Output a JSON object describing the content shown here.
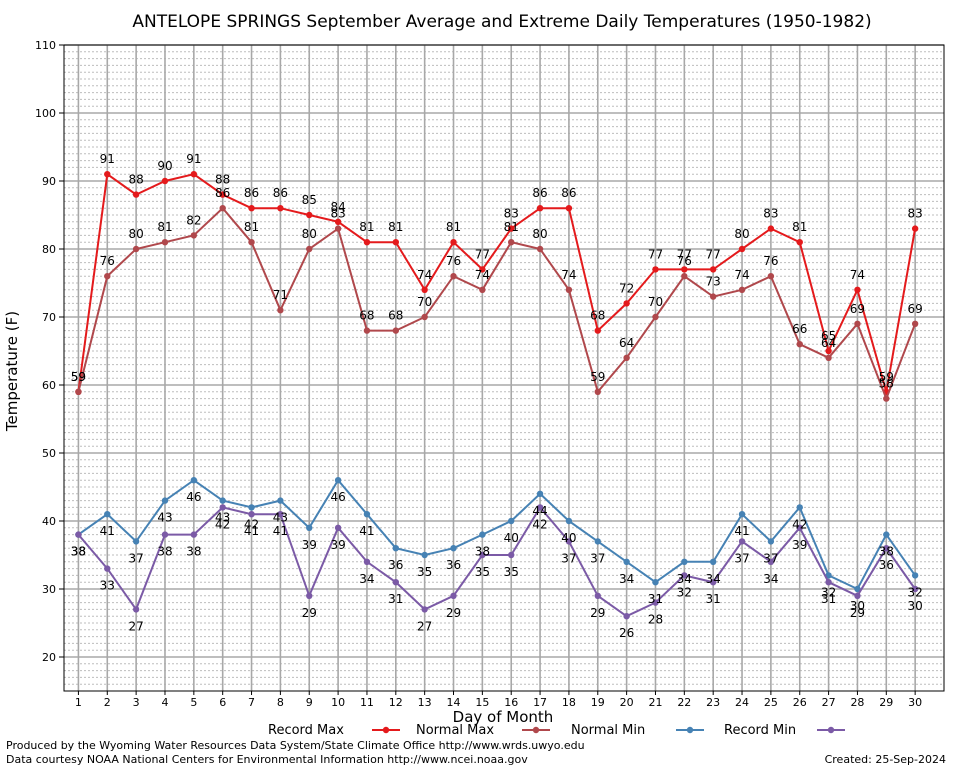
{
  "chart_data": {
    "type": "line",
    "title": "ANTELOPE SPRINGS September Average and Extreme Daily Temperatures (1950-1982)",
    "xlabel": "Day of Month",
    "ylabel": "Temperature (F)",
    "ylim": [
      15,
      110
    ],
    "yticks": [
      20,
      30,
      40,
      50,
      60,
      70,
      80,
      90,
      100,
      110
    ],
    "x": [
      1,
      2,
      3,
      4,
      5,
      6,
      7,
      8,
      9,
      10,
      11,
      12,
      13,
      14,
      15,
      16,
      17,
      18,
      19,
      20,
      21,
      22,
      23,
      24,
      25,
      26,
      27,
      28,
      29,
      30
    ],
    "grid": true,
    "series": [
      {
        "name": "Record Max",
        "color": "#e41a1c",
        "values": [
          59,
          91,
          88,
          90,
          91,
          88,
          86,
          86,
          85,
          84,
          81,
          81,
          74,
          81,
          77,
          83,
          86,
          86,
          68,
          72,
          77,
          77,
          77,
          80,
          83,
          81,
          65,
          74,
          59,
          83
        ]
      },
      {
        "name": "Normal Max",
        "color": "#b0484c",
        "values": [
          59,
          76,
          80,
          81,
          82,
          86,
          81,
          71,
          80,
          83,
          68,
          68,
          70,
          76,
          74,
          81,
          80,
          74,
          59,
          64,
          70,
          76,
          73,
          74,
          76,
          66,
          64,
          69,
          58,
          69
        ]
      },
      {
        "name": "Normal Min",
        "color": "#4682b4",
        "values": [
          38,
          41,
          37,
          43,
          46,
          43,
          42,
          43,
          39,
          46,
          41,
          36,
          35,
          36,
          38,
          40,
          44,
          40,
          37,
          34,
          31,
          34,
          34,
          41,
          37,
          42,
          32,
          30,
          38,
          32
        ]
      },
      {
        "name": "Record Min",
        "color": "#7b5aa6",
        "values": [
          38,
          33,
          27,
          38,
          38,
          42,
          41,
          41,
          29,
          39,
          34,
          31,
          27,
          29,
          35,
          35,
          42,
          37,
          29,
          26,
          28,
          32,
          31,
          37,
          34,
          39,
          31,
          29,
          36,
          30
        ]
      }
    ]
  },
  "legend": {
    "record_max": "Record Max",
    "normal_max": "Normal Max",
    "normal_min": "Normal Min",
    "record_min": "Record Min"
  },
  "footer": {
    "produced_by": "Produced by the Wyoming Water Resources Data System/State Climate Office http://www.wrds.uwyo.edu",
    "courtesy": "Data courtesy NOAA National Centers for Environmental Information http://www.ncei.noaa.gov",
    "created": "Created:  25-Sep-2024"
  }
}
